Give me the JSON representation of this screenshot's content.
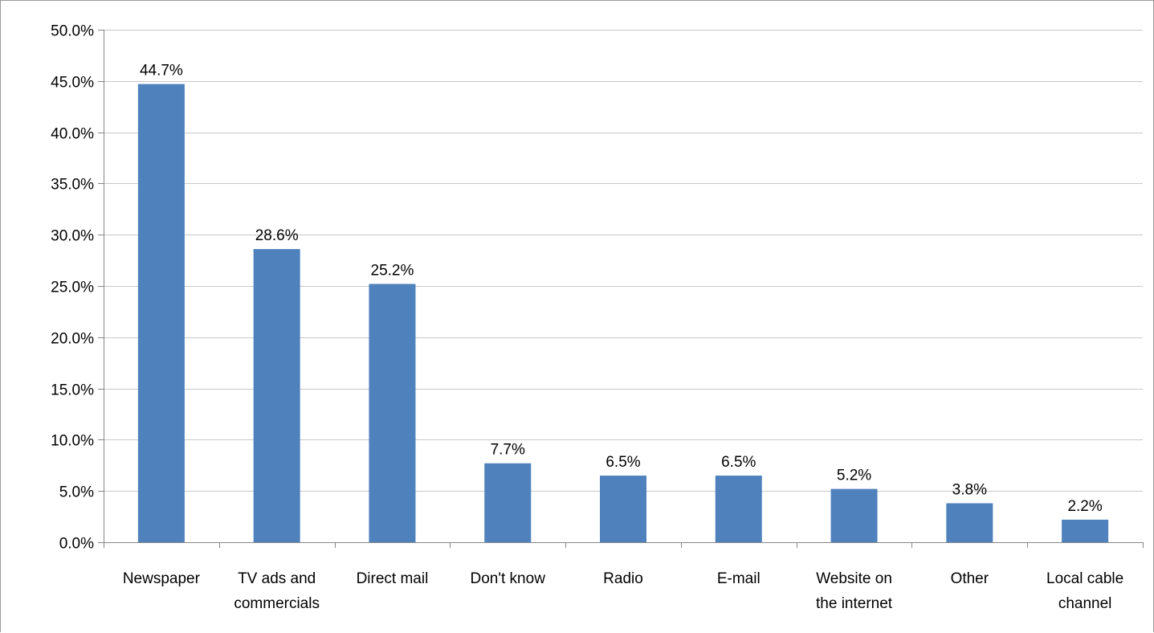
{
  "chart_data": {
    "type": "bar",
    "categories": [
      [
        "Newspaper"
      ],
      [
        "TV ads and",
        "commercials"
      ],
      [
        "Direct mail"
      ],
      [
        "Don't know"
      ],
      [
        "Radio"
      ],
      [
        "E-mail"
      ],
      [
        "Website on",
        "the internet"
      ],
      [
        "Other"
      ],
      [
        "Local cable",
        "channel"
      ]
    ],
    "values": [
      44.7,
      28.6,
      25.2,
      7.7,
      6.5,
      6.5,
      5.2,
      3.8,
      2.2
    ],
    "data_labels": [
      "44.7%",
      "28.6%",
      "25.2%",
      "7.7%",
      "6.5%",
      "6.5%",
      "5.2%",
      "3.8%",
      "2.2%"
    ],
    "y_ticks": [
      0,
      5,
      10,
      15,
      20,
      25,
      30,
      35,
      40,
      45,
      50
    ],
    "y_tick_labels": [
      "0.0%",
      "5.0%",
      "10.0%",
      "15.0%",
      "20.0%",
      "25.0%",
      "30.0%",
      "35.0%",
      "40.0%",
      "45.0%",
      "50.0%"
    ],
    "ylim": [
      0,
      50
    ],
    "title": "",
    "xlabel": "",
    "ylabel": "",
    "grid": true,
    "legend": "none",
    "colors": {
      "bar": "#4F81BD",
      "grid": "#C8C8C8",
      "axis": "#868686",
      "text": "#000000"
    }
  }
}
